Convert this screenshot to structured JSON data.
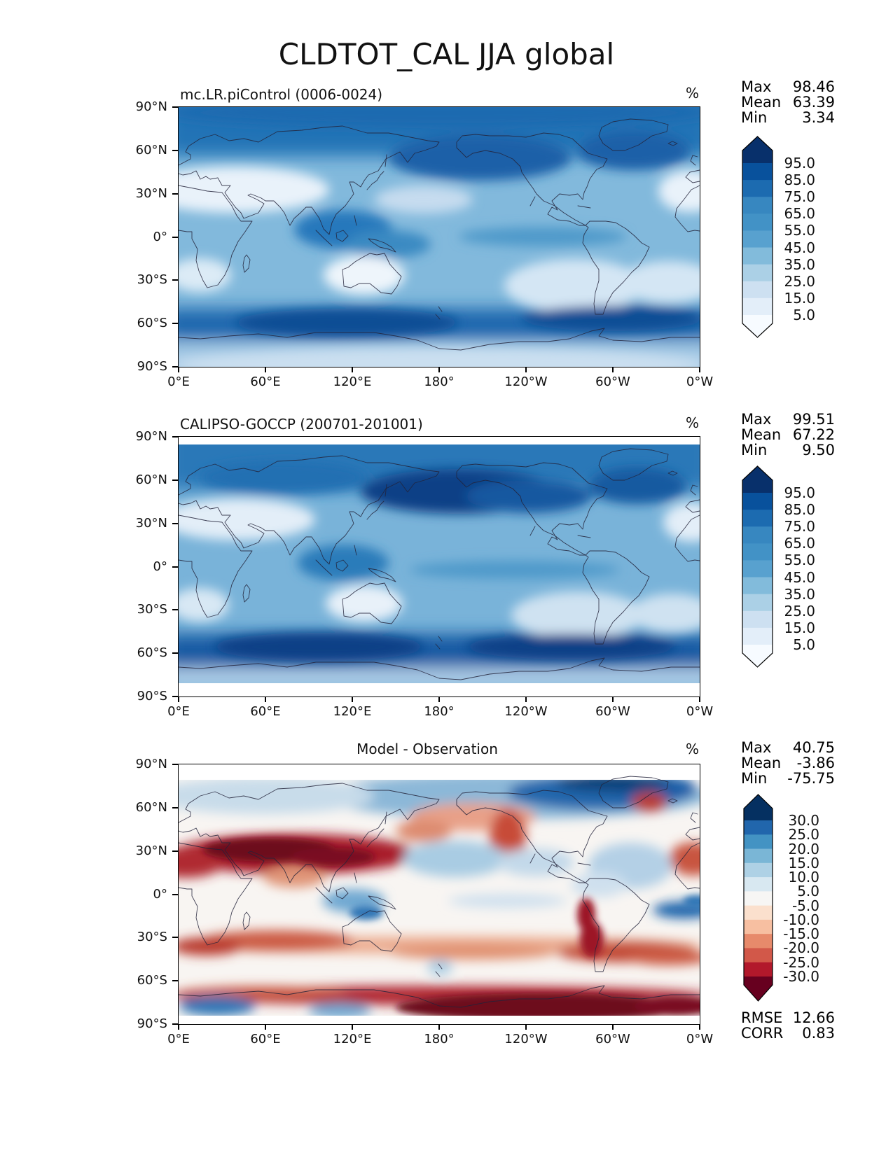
{
  "title": "CLDTOT_CAL JJA global",
  "panels": [
    {
      "title": "mc.LR.piControl (0006-0024)",
      "units": "%",
      "stats": [
        {
          "label": "Max",
          "value": "98.46"
        },
        {
          "label": "Mean",
          "value": "63.39"
        },
        {
          "label": "Min",
          "value": "3.34"
        }
      ]
    },
    {
      "title": "CALIPSO-GOCCP (200701-201001)",
      "units": "%",
      "stats": [
        {
          "label": "Max",
          "value": "99.51"
        },
        {
          "label": "Mean",
          "value": "67.22"
        },
        {
          "label": "Min",
          "value": "9.50"
        }
      ]
    },
    {
      "title": "Model - Observation",
      "units": "%",
      "stats": [
        {
          "label": "Max",
          "value": "40.75"
        },
        {
          "label": "Mean",
          "value": "-3.86"
        },
        {
          "label": "Min",
          "value": "-75.75"
        }
      ],
      "extra_stats": [
        {
          "label": "RMSE",
          "value": "12.66"
        },
        {
          "label": "CORR",
          "value": "0.83"
        }
      ]
    }
  ],
  "axis": {
    "lat_labels": [
      "90°N",
      "60°N",
      "30°N",
      "0°",
      "30°S",
      "60°S",
      "90°S"
    ],
    "lon_labels": [
      "0°E",
      "60°E",
      "120°E",
      "180°",
      "120°W",
      "60°W",
      "0°W"
    ]
  },
  "colorbars": {
    "total": {
      "tick_labels": [
        "95.0",
        "85.0",
        "75.0",
        "65.0",
        "55.0",
        "45.0",
        "35.0",
        "25.0",
        "15.0",
        "5.0"
      ],
      "extend_top_color": "#08306b",
      "segment_colors": [
        "#08519c",
        "#1c6bb0",
        "#3787c0",
        "#4292c6",
        "#58a1cf",
        "#82bbdb",
        "#abd0e6",
        "#cde0f1",
        "#e3eef9"
      ],
      "extend_bottom_color": "#f7fbff"
    },
    "diff": {
      "tick_labels": [
        "30.0",
        "25.0",
        "20.0",
        "15.0",
        "10.0",
        "5.0",
        "-5.0",
        "-10.0",
        "-15.0",
        "-20.0",
        "-25.0",
        "-30.0"
      ],
      "extend_top_color": "#053061",
      "segment_colors": [
        "#2166ac",
        "#4393c3",
        "#7ab6d6",
        "#aed1e5",
        "#d8e8f1",
        "#f7f6f4",
        "#fbe0cd",
        "#f7bfa1",
        "#e78a6b",
        "#d25849",
        "#b2182b"
      ],
      "extend_bottom_color": "#67001f"
    }
  },
  "chart_data": [
    {
      "type": "heatmap",
      "subtype": "filled-contour-global-map",
      "title": "mc.LR.piControl (0006-0024)",
      "variable": "CLDTOT_CAL",
      "season": "JJA",
      "region": "global",
      "units": "%",
      "colormap": "Blues",
      "levels": [
        5,
        15,
        25,
        35,
        45,
        55,
        65,
        75,
        85,
        95
      ],
      "extend": "both",
      "stats": {
        "max": 98.46,
        "mean": 63.39,
        "min": 3.34
      },
      "lon_ticks_deg_east": [
        0,
        60,
        120,
        180,
        240,
        300,
        360
      ],
      "lat_ticks_deg": [
        90,
        60,
        30,
        0,
        -30,
        -60,
        -90
      ],
      "pattern_notes": "High total cloud (85-98%) over Southern Ocean 50-65S, North Pacific and North Atlantic storm tracks and Arctic; low cloud (5-30%) over Sahara/Arabia, Australia, southern Africa and subtropical eastern oceans"
    },
    {
      "type": "heatmap",
      "subtype": "filled-contour-global-map",
      "title": "CALIPSO-GOCCP (200701-201001)",
      "variable": "CLDTOT_CAL",
      "season": "JJA",
      "region": "global",
      "units": "%",
      "colormap": "Blues",
      "levels": [
        5,
        15,
        25,
        35,
        45,
        55,
        65,
        75,
        85,
        95
      ],
      "extend": "both",
      "stats": {
        "max": 99.51,
        "mean": 67.22,
        "min": 9.5
      },
      "lon_ticks_deg_east": [
        0,
        60,
        120,
        180,
        240,
        300,
        360
      ],
      "lat_ticks_deg": [
        90,
        60,
        30,
        0,
        -30,
        -60,
        -90
      ],
      "pattern_notes": "Observed cloud fraction: very dark (>95%) North Pacific band 40-60N, dark Southern Ocean band, lighter subtropical deserts; data gap poleward of ~82 degrees shown white"
    },
    {
      "type": "heatmap",
      "subtype": "filled-contour-global-map-difference",
      "title": "Model - Observation",
      "variable": "CLDTOT_CAL bias",
      "season": "JJA",
      "region": "global",
      "units": "%",
      "colormap": "RdBu",
      "levels": [
        -30,
        -25,
        -20,
        -15,
        -10,
        -5,
        5,
        10,
        15,
        20,
        25,
        30
      ],
      "extend": "both",
      "stats": {
        "max": 40.75,
        "mean": -3.86,
        "min": -75.75
      },
      "rmse": 12.66,
      "corr": 0.83,
      "lon_ticks_deg_east": [
        0,
        60,
        120,
        180,
        240,
        300,
        360
      ],
      "lat_ticks_deg": [
        90,
        60,
        30,
        0,
        -30,
        -60,
        -90
      ],
      "pattern_notes": "Strong negative bias (< -30%) over central Asia/Tibet 25-40N, Andes, subtropical southern oceans and Antarctic coastal band 60-70S; positive bias (blue) over Arctic 60-80N, central North Pacific, tropical Atlantic and maritime continent"
    }
  ]
}
